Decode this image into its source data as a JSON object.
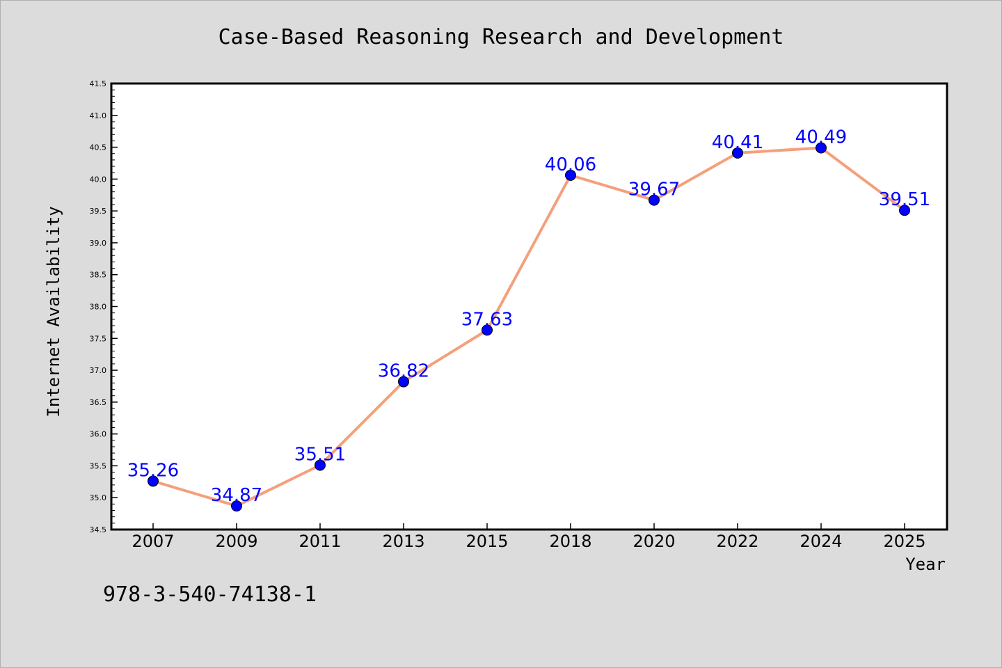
{
  "chart_data": {
    "type": "line",
    "title": "Case-Based Reasoning Research and Development",
    "xlabel": "Year",
    "ylabel": "Internet Availability",
    "categories": [
      "2007",
      "2009",
      "2011",
      "2013",
      "2015",
      "2018",
      "2020",
      "2022",
      "2024",
      "2025"
    ],
    "values": [
      35.26,
      34.87,
      35.51,
      36.82,
      37.63,
      40.06,
      39.67,
      40.41,
      40.49,
      39.51
    ],
    "data_labels": [
      "35.26",
      "34.87",
      "35.51",
      "36.82",
      "37.63",
      "40.06",
      "39.67",
      "40.41",
      "40.49",
      "39.51"
    ],
    "ylim": [
      34.5,
      41.5
    ],
    "yticks": [
      "34.5",
      "35.0",
      "35.5",
      "36.0",
      "36.5",
      "37.0",
      "37.5",
      "38.0",
      "38.5",
      "39.0",
      "39.5",
      "40.0",
      "40.5",
      "41.0",
      "41.5"
    ],
    "grid": false,
    "legend": "none",
    "line_color": "#f4a07c",
    "marker_color": "#0000ff",
    "label_color": "#0000ff"
  },
  "footnote": "978-3-540-74138-1"
}
